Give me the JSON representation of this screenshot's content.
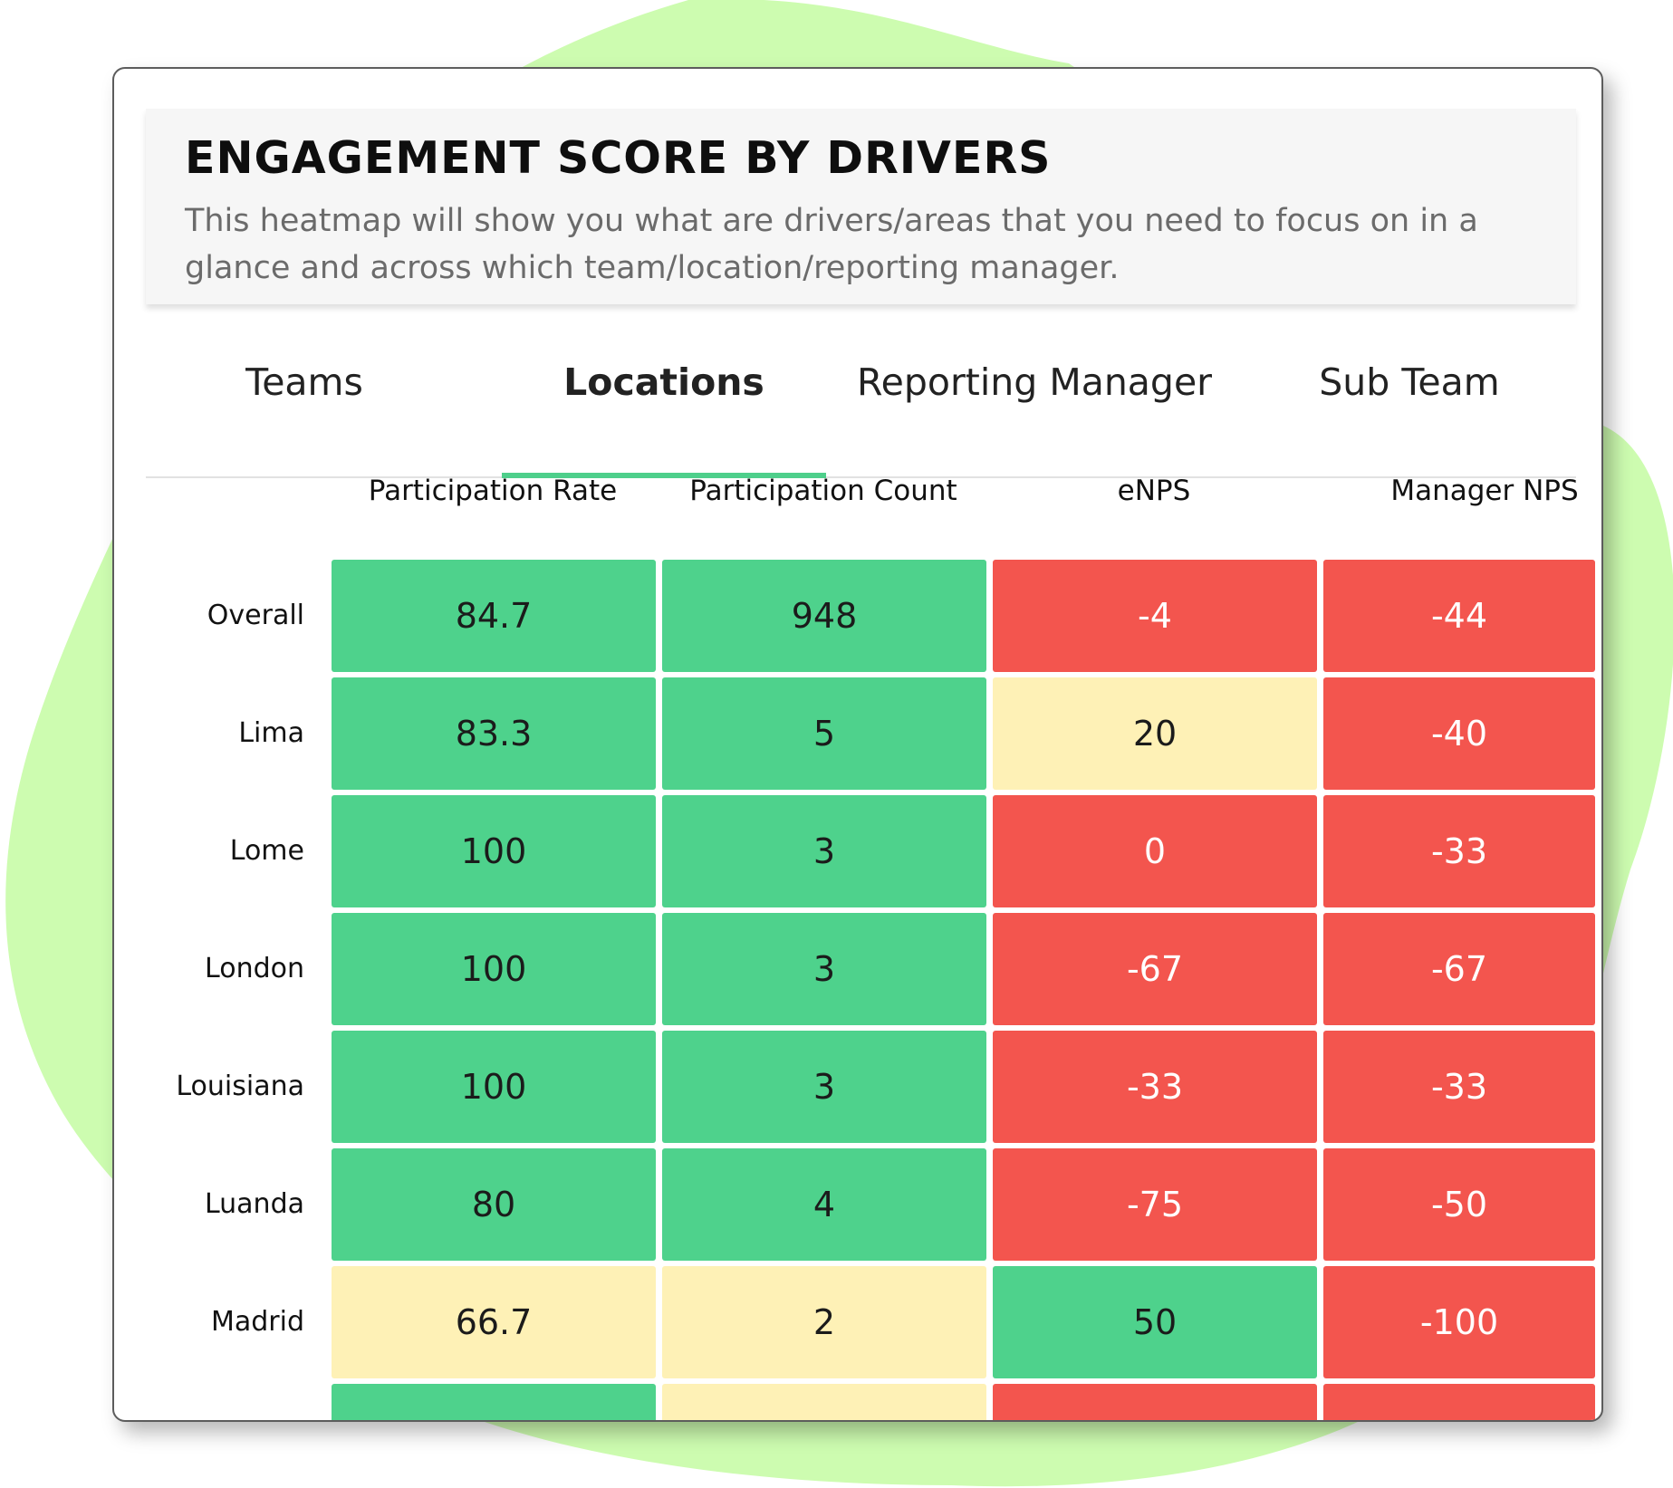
{
  "title": "ENGAGEMENT SCORE BY DRIVERS",
  "subtitle": "This heatmap will show you what are drivers/areas that you need to focus on in a glance and across which team/location/reporting manager.",
  "tabs": [
    {
      "label": "Teams",
      "active": false
    },
    {
      "label": "Locations",
      "active": true
    },
    {
      "label": "Reporting Manager",
      "active": false
    },
    {
      "label": "Sub Team",
      "active": false
    }
  ],
  "colors": {
    "green": "#4ed28c",
    "yellow": "#fef1b6",
    "red": "#f3554e",
    "accent": "#4ecf8b",
    "blob": "#cdfcb0"
  },
  "chart_data": {
    "type": "heatmap",
    "columns": [
      "Participation Rate",
      "Participation Count",
      "eNPS",
      "Manager NPS"
    ],
    "rows": [
      {
        "label": "Overall",
        "values": [
          "84.7",
          "948",
          "-4",
          "-44"
        ],
        "levels": [
          "green",
          "green",
          "red",
          "red"
        ]
      },
      {
        "label": "Lima",
        "values": [
          "83.3",
          "5",
          "20",
          "-40"
        ],
        "levels": [
          "green",
          "green",
          "yellow",
          "red"
        ]
      },
      {
        "label": "Lome",
        "values": [
          "100",
          "3",
          "0",
          "-33"
        ],
        "levels": [
          "green",
          "green",
          "red",
          "red"
        ]
      },
      {
        "label": "London",
        "values": [
          "100",
          "3",
          "-67",
          "-67"
        ],
        "levels": [
          "green",
          "green",
          "red",
          "red"
        ]
      },
      {
        "label": "Louisiana",
        "values": [
          "100",
          "3",
          "-33",
          "-33"
        ],
        "levels": [
          "green",
          "green",
          "red",
          "red"
        ]
      },
      {
        "label": "Luanda",
        "values": [
          "80",
          "4",
          "-75",
          "-50"
        ],
        "levels": [
          "green",
          "green",
          "red",
          "red"
        ]
      },
      {
        "label": "Madrid",
        "values": [
          "66.7",
          "2",
          "50",
          "-100"
        ],
        "levels": [
          "yellow",
          "yellow",
          "green",
          "red"
        ]
      }
    ],
    "partial_row_levels": [
      "green",
      "yellow",
      "red",
      "red"
    ]
  }
}
